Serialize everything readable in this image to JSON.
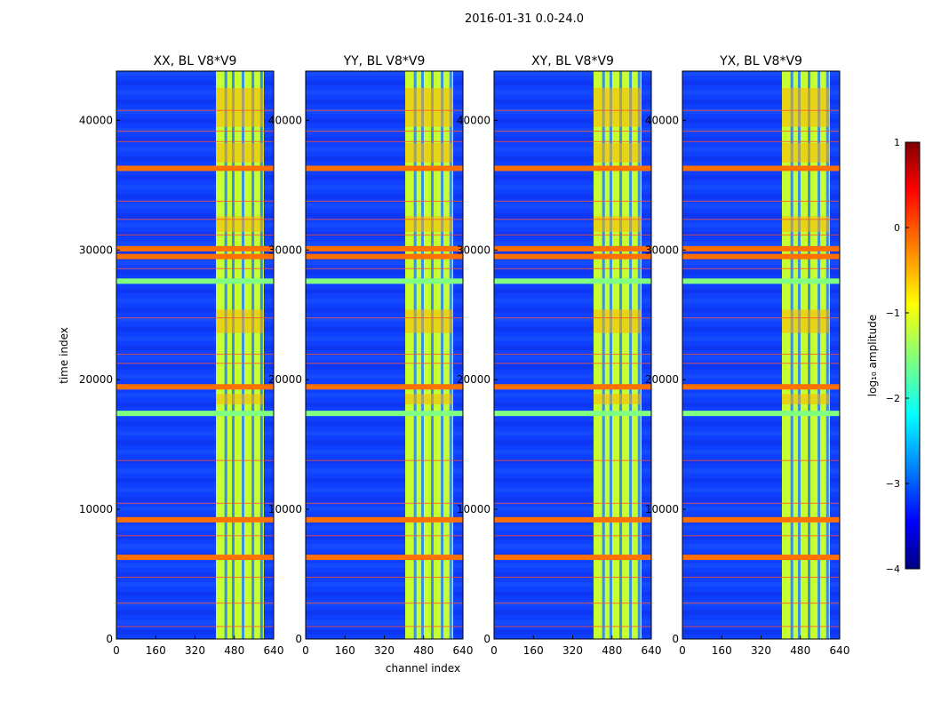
{
  "figure": {
    "suptitle": "2016-01-31 0.0-24.0"
  },
  "chart_data": {
    "type": "heatmap",
    "panels": [
      {
        "title": "XX, BL V8*V9"
      },
      {
        "title": "YY, BL V8*V9"
      },
      {
        "title": "XY, BL V8*V9"
      },
      {
        "title": "YX, BL V8*V9"
      }
    ],
    "xlabel": "channel index",
    "ylabel": "time index",
    "xlim": [
      0,
      640
    ],
    "ylim": [
      0,
      43800
    ],
    "xticks": [
      0,
      160,
      320,
      480,
      640
    ],
    "yticks": [
      0,
      10000,
      20000,
      30000,
      40000
    ],
    "colorbar": {
      "label": "log₁₀ amplitude",
      "range": [
        -4,
        1
      ],
      "ticks": [
        1,
        0,
        -1,
        -2,
        -3,
        -4
      ],
      "tick_labels": [
        "1",
        "0",
        "−1",
        "−2",
        "−3",
        "−4"
      ],
      "colormap": "jet"
    },
    "features": {
      "bright_channel_band": [
        405,
        600
      ],
      "flagged_time_rows_orange": [
        36300,
        30100,
        29500,
        19450,
        9200,
        6300
      ],
      "flagged_time_rows_green": [
        27600,
        17400
      ]
    }
  }
}
